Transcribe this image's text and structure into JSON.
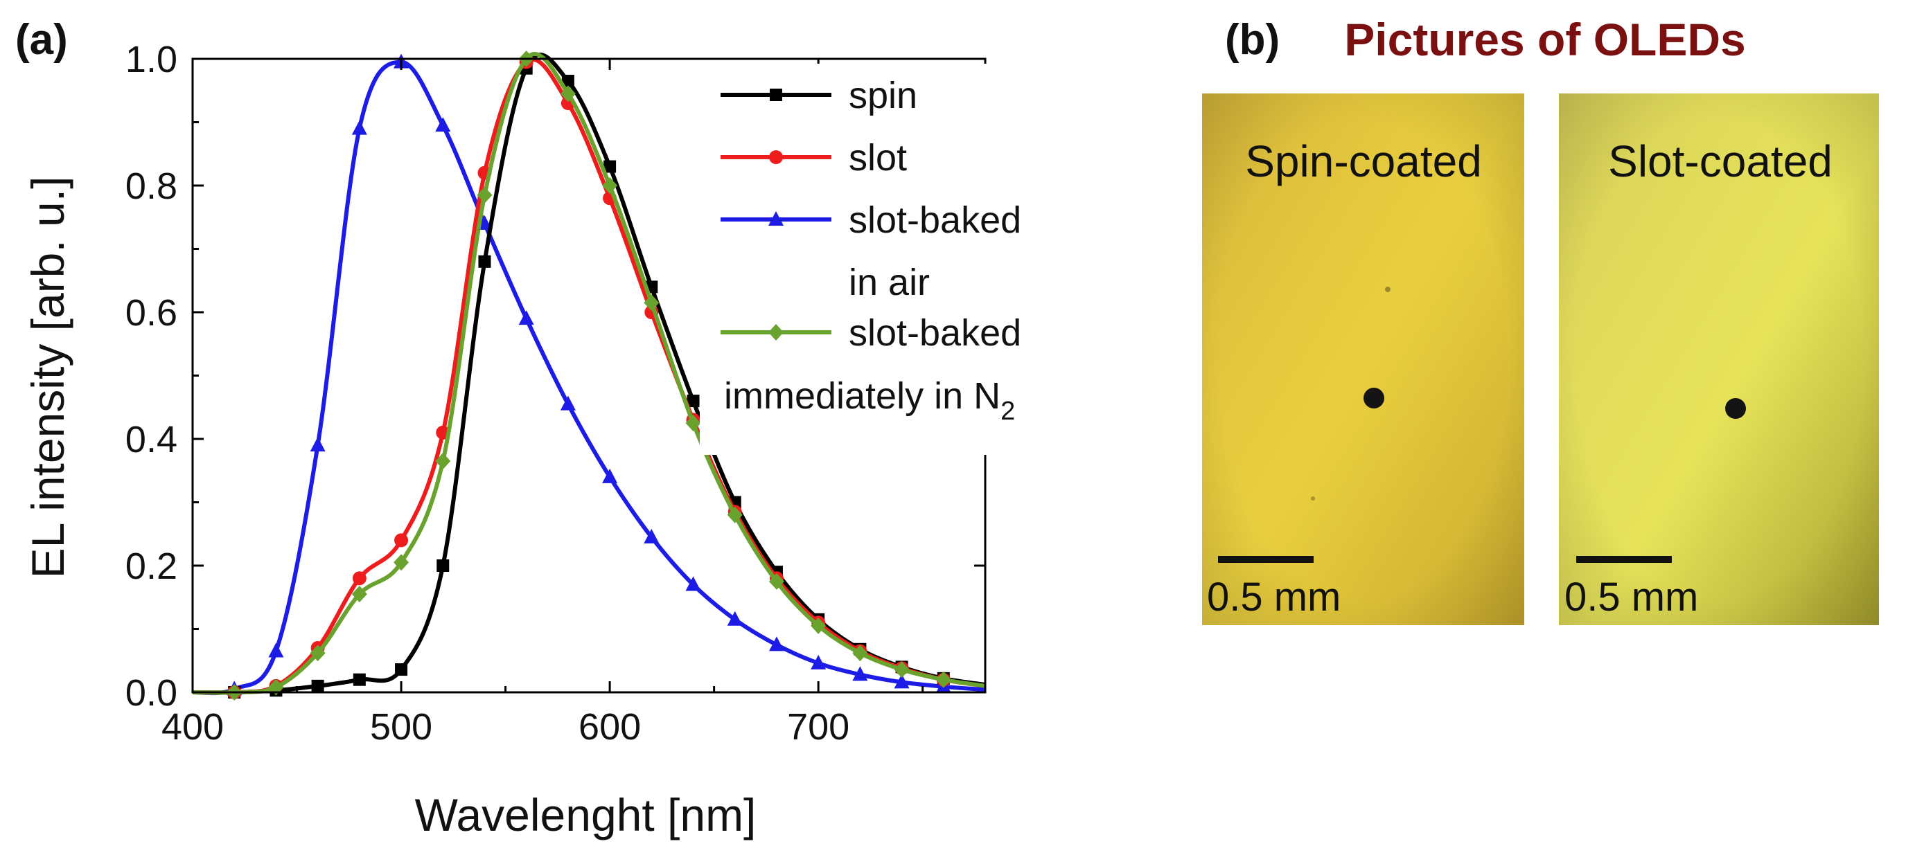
{
  "panel_a": {
    "label": "(a)"
  },
  "panel_b": {
    "label": "(b)",
    "title": "Pictures of OLEDs",
    "title_color": "#7a1010",
    "photos": [
      {
        "label": "Spin-coated",
        "scale_label": "0.5 mm"
      },
      {
        "label": "Slot-coated",
        "scale_label": "0.5 mm"
      }
    ]
  },
  "chart_data": {
    "type": "line",
    "xlabel": "Wavelenght [nm]",
    "ylabel": "EL intensity [arb. u.]",
    "xlim": [
      400,
      780
    ],
    "ylim": [
      0,
      1.0
    ],
    "xticks": [
      400,
      500,
      600,
      700
    ],
    "yticks": [
      0.0,
      0.2,
      0.4,
      0.6,
      0.8,
      1.0
    ],
    "xtick_labels": [
      "400",
      "500",
      "600",
      "700"
    ],
    "ytick_labels": [
      "0.0",
      "0.2",
      "0.4",
      "0.6",
      "0.8",
      "1.0"
    ],
    "grid": false,
    "legend_position": "top-right",
    "legend_entries": [
      {
        "lines": [
          "spin"
        ],
        "series": 0
      },
      {
        "lines": [
          "slot"
        ],
        "series": 1
      },
      {
        "lines": [
          "slot-baked",
          "in air"
        ],
        "series": 2
      },
      {
        "lines": [
          "slot-baked",
          "immediately in N",
          "2"
        ],
        "series": 3,
        "subscript_last": true
      }
    ],
    "series": [
      {
        "name": "spin",
        "color": "#000000",
        "marker": "square",
        "x": [
          400,
          420,
          440,
          460,
          480,
          500,
          520,
          540,
          560,
          580,
          600,
          620,
          640,
          660,
          680,
          700,
          720,
          740,
          760,
          780
        ],
        "y": [
          0.0,
          0.0,
          0.003,
          0.01,
          0.02,
          0.036,
          0.2,
          0.68,
          0.985,
          0.965,
          0.83,
          0.64,
          0.46,
          0.3,
          0.19,
          0.115,
          0.068,
          0.04,
          0.022,
          0.012
        ]
      },
      {
        "name": "slot",
        "color": "#ee1c1c",
        "marker": "circle",
        "x": [
          400,
          420,
          440,
          460,
          480,
          500,
          520,
          540,
          560,
          580,
          600,
          620,
          640,
          660,
          680,
          700,
          720,
          740,
          760,
          780
        ],
        "y": [
          0.0,
          0.0,
          0.01,
          0.07,
          0.18,
          0.24,
          0.41,
          0.82,
          0.995,
          0.93,
          0.78,
          0.6,
          0.43,
          0.285,
          0.18,
          0.11,
          0.065,
          0.038,
          0.02,
          0.01
        ]
      },
      {
        "name": "slot-baked in air",
        "color": "#1c1ce6",
        "marker": "triangle",
        "x": [
          400,
          420,
          440,
          460,
          480,
          500,
          520,
          540,
          560,
          580,
          600,
          620,
          640,
          660,
          680,
          700,
          720,
          740,
          760,
          780
        ],
        "y": [
          0.0,
          0.005,
          0.065,
          0.39,
          0.89,
          0.995,
          0.895,
          0.74,
          0.59,
          0.455,
          0.34,
          0.245,
          0.17,
          0.115,
          0.075,
          0.046,
          0.028,
          0.016,
          0.009,
          0.004
        ]
      },
      {
        "name": "slot-baked immediately in N2",
        "color": "#6aa22e",
        "marker": "diamond",
        "x": [
          400,
          420,
          440,
          460,
          480,
          500,
          520,
          540,
          560,
          580,
          600,
          620,
          640,
          660,
          680,
          700,
          720,
          740,
          760,
          780
        ],
        "y": [
          0.0,
          0.0,
          0.008,
          0.062,
          0.155,
          0.205,
          0.365,
          0.785,
          1.0,
          0.945,
          0.8,
          0.615,
          0.425,
          0.28,
          0.175,
          0.105,
          0.062,
          0.036,
          0.02,
          0.01
        ]
      }
    ]
  }
}
